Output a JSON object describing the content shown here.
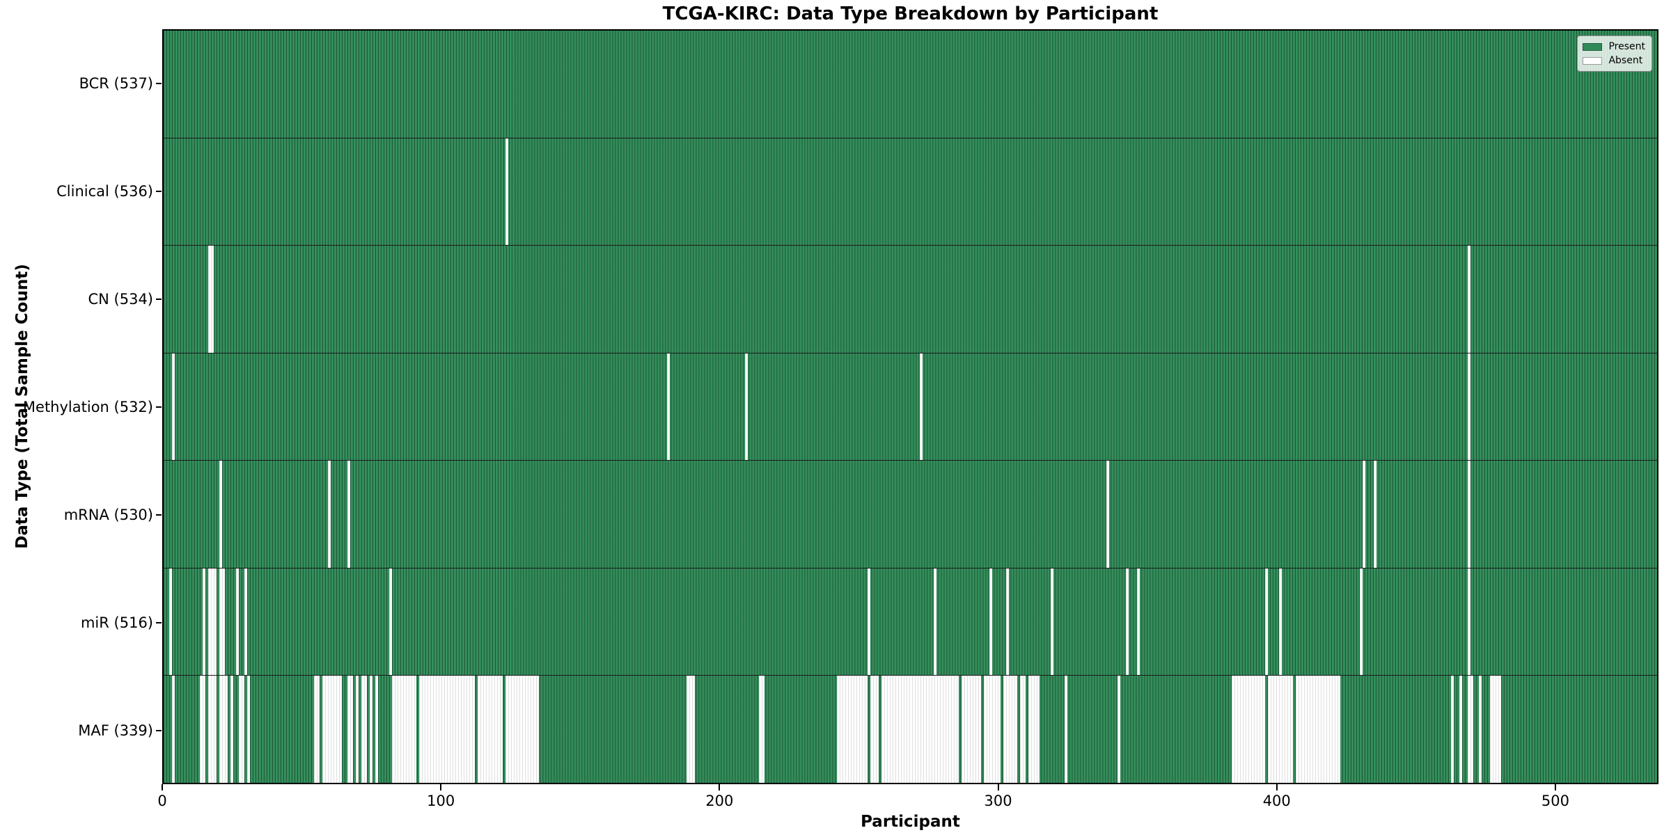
{
  "title": "TCGA-KIRC: Data Type Breakdown by Participant",
  "xlabel": "Participant",
  "ylabel": "Data Type (Total Sample Count)",
  "legend": {
    "present_label": "Present",
    "absent_label": "Absent"
  },
  "colors": {
    "present": "#2e8b57",
    "absent": "#ffffff",
    "axis": "#000000"
  },
  "chart_data": {
    "type": "heatmap",
    "x_axis": {
      "label": "Participant",
      "ticks": [
        0,
        100,
        200,
        300,
        400,
        500
      ],
      "range": [
        0,
        537
      ]
    },
    "n_participants": 537,
    "legend_position": "upper right",
    "rows": [
      {
        "name": "BCR",
        "label": "BCR (537)",
        "present_count": 537,
        "absent_ranges": []
      },
      {
        "name": "Clinical",
        "label": "Clinical (536)",
        "present_count": 536,
        "absent_ranges": [
          [
            123,
            123
          ]
        ]
      },
      {
        "name": "CN",
        "label": "CN (534)",
        "present_count": 534,
        "absent_ranges": [
          [
            16,
            17
          ],
          [
            469,
            469
          ]
        ]
      },
      {
        "name": "Methylation",
        "label": "Methylation (532)",
        "present_count": 532,
        "absent_ranges": [
          [
            3,
            3
          ],
          [
            181,
            181
          ],
          [
            209,
            209
          ],
          [
            272,
            272
          ],
          [
            469,
            469
          ]
        ]
      },
      {
        "name": "mRNA",
        "label": "mRNA (530)",
        "present_count": 530,
        "absent_ranges": [
          [
            20,
            20
          ],
          [
            59,
            59
          ],
          [
            66,
            66
          ],
          [
            339,
            339
          ],
          [
            431,
            431
          ],
          [
            435,
            435
          ],
          [
            469,
            469
          ]
        ]
      },
      {
        "name": "miR",
        "label": "miR (516)",
        "present_count": 516,
        "absent_ranges": [
          [
            2,
            2
          ],
          [
            14,
            14
          ],
          [
            16,
            18
          ],
          [
            20,
            21
          ],
          [
            26,
            26
          ],
          [
            29,
            29
          ],
          [
            81,
            81
          ],
          [
            253,
            253
          ],
          [
            277,
            277
          ],
          [
            297,
            297
          ],
          [
            303,
            303
          ],
          [
            319,
            319
          ],
          [
            346,
            346
          ],
          [
            350,
            350
          ],
          [
            396,
            396
          ],
          [
            401,
            401
          ],
          [
            430,
            430
          ],
          [
            469,
            469
          ]
        ]
      },
      {
        "name": "MAF",
        "label": "MAF (339)",
        "present_count": 339,
        "absent_ranges": [
          [
            3,
            3
          ],
          [
            13,
            14
          ],
          [
            16,
            18
          ],
          [
            20,
            22
          ],
          [
            24,
            24
          ],
          [
            27,
            28
          ],
          [
            30,
            30
          ],
          [
            54,
            55
          ],
          [
            57,
            63
          ],
          [
            66,
            67
          ],
          [
            69,
            69
          ],
          [
            71,
            72
          ],
          [
            74,
            74
          ],
          [
            76,
            76
          ],
          [
            82,
            90
          ],
          [
            92,
            111
          ],
          [
            113,
            121
          ],
          [
            123,
            134
          ],
          [
            188,
            190
          ],
          [
            214,
            215
          ],
          [
            242,
            252
          ],
          [
            254,
            256
          ],
          [
            258,
            285
          ],
          [
            287,
            293
          ],
          [
            295,
            300
          ],
          [
            302,
            306
          ],
          [
            308,
            309
          ],
          [
            311,
            314
          ],
          [
            324,
            324
          ],
          [
            343,
            343
          ],
          [
            384,
            395
          ],
          [
            397,
            405
          ],
          [
            407,
            422
          ],
          [
            463,
            463
          ],
          [
            466,
            466
          ],
          [
            469,
            470
          ],
          [
            473,
            473
          ],
          [
            477,
            480
          ]
        ]
      }
    ]
  }
}
